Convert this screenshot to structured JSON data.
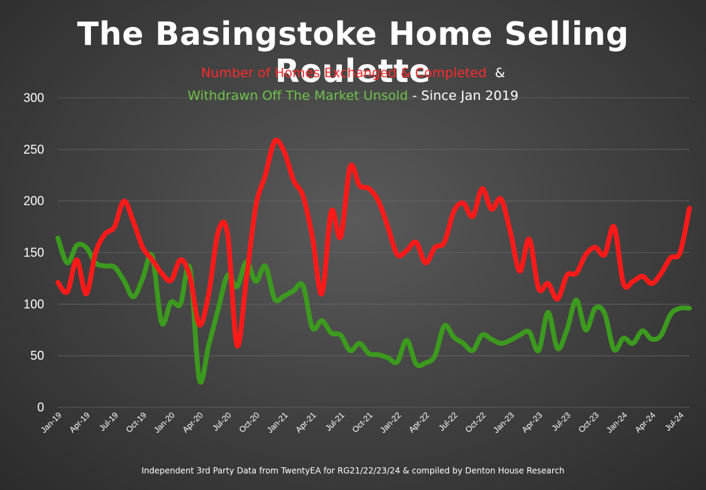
{
  "title": "The Basingstoke Home Selling Roulette",
  "subtitle": {
    "red_text": "Number of Homes Exchanged & Completed",
    "amp": "&",
    "green_text": "Withdrawn Off The Market Unsold",
    "white_text": "- Since Jan 2019"
  },
  "footer": "Independent 3rd Party Data from TwentyEA for RG21/22/23/24 & compiled by Denton House Research",
  "colors": {
    "exchanged": "#ff1a1a",
    "withdrawn": "#3c9a1e",
    "grid": "#666666"
  },
  "chart_data": {
    "type": "line",
    "ylim": [
      0,
      300
    ],
    "yticks": [
      0,
      50,
      100,
      150,
      200,
      250,
      300
    ],
    "grid": true,
    "xtick_labels": [
      "Jan-19",
      "Apr-19",
      "Jul-19",
      "Oct-19",
      "Jan-20",
      "Apr-20",
      "Jul-20",
      "Oct-20",
      "Jan-21",
      "Apr-21",
      "Jul-21",
      "Oct-21",
      "Jan-22",
      "Apr-22",
      "Jul-22",
      "Oct-22",
      "Jan-23",
      "Apr-23",
      "Jul-23",
      "Oct-23",
      "Jan-24",
      "Apr-24",
      "Jul-24"
    ],
    "x": [
      "Jan-19",
      "Feb-19",
      "Mar-19",
      "Apr-19",
      "May-19",
      "Jun-19",
      "Jul-19",
      "Aug-19",
      "Sep-19",
      "Oct-19",
      "Nov-19",
      "Dec-19",
      "Jan-20",
      "Feb-20",
      "Mar-20",
      "Apr-20",
      "May-20",
      "Jun-20",
      "Jul-20",
      "Aug-20",
      "Sep-20",
      "Oct-20",
      "Nov-20",
      "Dec-20",
      "Jan-21",
      "Feb-21",
      "Mar-21",
      "Apr-21",
      "May-21",
      "Jun-21",
      "Jul-21",
      "Aug-21",
      "Sep-21",
      "Oct-21",
      "Nov-21",
      "Dec-21",
      "Jan-22",
      "Feb-22",
      "Mar-22",
      "Apr-22",
      "May-22",
      "Jun-22",
      "Jul-22",
      "Aug-22",
      "Sep-22",
      "Oct-22",
      "Nov-22",
      "Dec-22",
      "Jan-23",
      "Feb-23",
      "Mar-23",
      "Apr-23",
      "May-23",
      "Jun-23",
      "Jul-23",
      "Aug-23",
      "Sep-23",
      "Oct-23",
      "Nov-23",
      "Dec-23",
      "Jan-24",
      "Feb-24",
      "Mar-24",
      "Apr-24",
      "May-24",
      "Jun-24",
      "Jul-24",
      "Aug-24"
    ],
    "series": [
      {
        "color": "#ff1a1a",
        "values": [
          121,
          112,
          143,
          110,
          150,
          168,
          175,
          200,
          180,
          155,
          143,
          130,
          123,
          143,
          127,
          80,
          110,
          170,
          168,
          60,
          125,
          195,
          225,
          258,
          248,
          220,
          205,
          165,
          110,
          190,
          165,
          233,
          215,
          212,
          200,
          175,
          148,
          152,
          160,
          140,
          155,
          160,
          190,
          198,
          185,
          212,
          192,
          202,
          170,
          132,
          163,
          115,
          120,
          105,
          128,
          130,
          148,
          155,
          148,
          175,
          120,
          122,
          127,
          120,
          130,
          145,
          150,
          193
        ]
      },
      {
        "color": "#3c9a1e",
        "values": [
          164,
          140,
          157,
          155,
          140,
          137,
          136,
          123,
          107,
          125,
          147,
          82,
          102,
          100,
          135,
          27,
          60,
          95,
          128,
          117,
          141,
          122,
          137,
          105,
          108,
          113,
          118,
          77,
          84,
          72,
          70,
          55,
          62,
          52,
          51,
          48,
          44,
          65,
          42,
          43,
          50,
          79,
          68,
          62,
          55,
          70,
          66,
          62,
          65,
          70,
          73,
          55,
          92,
          57,
          75,
          104,
          75,
          96,
          91,
          56,
          67,
          62,
          74,
          66,
          70,
          90,
          96,
          96
        ]
      }
    ]
  }
}
